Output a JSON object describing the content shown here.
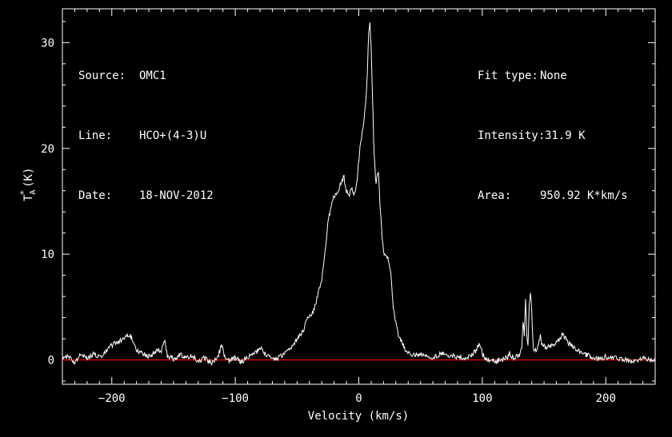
{
  "info_left": [
    {
      "label": "Source:",
      "value": "OMC1"
    },
    {
      "label": "Line:",
      "value": "HCO+(4-3)U"
    },
    {
      "label": "Date:",
      "value": "18-NOV-2012"
    }
  ],
  "info_right": [
    {
      "label": "Fit type:",
      "value": "None"
    },
    {
      "label": "Intensity:",
      "value": "31.9 K"
    },
    {
      "label": "Area:",
      "value": "950.92 K*km/s"
    }
  ],
  "colors": {
    "background": "#000000",
    "spectrum": "#ffffff",
    "baseline": "#ff0000",
    "axes": "#ffffff"
  },
  "chart_data": {
    "type": "line",
    "title": "",
    "xlabel": "Velocity (km/s)",
    "ylabel": "T",
    "ylabel_sub": "A",
    "ylabel_sup": "*",
    "ylabel_unit": "(K)",
    "xlim": [
      -240,
      240
    ],
    "ylim": [
      -2.3,
      33.2
    ],
    "xticks": [
      -200,
      -100,
      0,
      100,
      200
    ],
    "xtick_labels": [
      "−200",
      "−100",
      "0",
      "100",
      "200"
    ],
    "yticks": [
      0,
      10,
      20,
      30
    ],
    "ytick_labels": [
      "0",
      "10",
      "20",
      "30"
    ],
    "grid": false,
    "baseline": 0,
    "series": [
      {
        "x": [
          -240,
          -235,
          -230,
          -225,
          -220,
          -215,
          -210,
          -205,
          -200,
          -195,
          -190,
          -186,
          -183,
          -180,
          -175,
          -170,
          -165,
          -160,
          -157,
          -155,
          -150,
          -145,
          -140,
          -135,
          -130,
          -125,
          -120,
          -115,
          -111,
          -108,
          -105,
          -100,
          -95,
          -90,
          -85,
          -80,
          -77,
          -75,
          -70,
          -65,
          -60,
          -55,
          -50,
          -45,
          -41,
          -38,
          -35,
          -30,
          -27,
          -25,
          -22,
          -20,
          -17,
          -15,
          -12,
          -10,
          -8,
          -6,
          -4,
          -2,
          0,
          2,
          4,
          6,
          7,
          8,
          9,
          10,
          11,
          12,
          13,
          14,
          15,
          16,
          17,
          18,
          19,
          20,
          22,
          24,
          26,
          28,
          30,
          32,
          35,
          38,
          40,
          45,
          50,
          55,
          60,
          65,
          70,
          75,
          80,
          85,
          90,
          95,
          98,
          100,
          103,
          105,
          110,
          115,
          120,
          122,
          125,
          128,
          130,
          132,
          133,
          134,
          135,
          136,
          137,
          138,
          139,
          140,
          141,
          142,
          143,
          145,
          147,
          148,
          150,
          153,
          156,
          160,
          163,
          165,
          168,
          170,
          175,
          180,
          185,
          190,
          195,
          200,
          205,
          210,
          215,
          220,
          225,
          230,
          235,
          240
        ],
        "y": [
          0.2,
          0.4,
          -0.2,
          0.5,
          0.1,
          0.6,
          0.3,
          0.8,
          1.4,
          1.7,
          2.0,
          2.4,
          1.9,
          1.0,
          0.6,
          0.3,
          0.8,
          0.9,
          1.9,
          0.4,
          0.1,
          0.5,
          0.2,
          0.4,
          -0.1,
          0.2,
          -0.3,
          0.1,
          1.3,
          0.2,
          -0.1,
          0.2,
          -0.2,
          0.3,
          0.5,
          1.1,
          0.8,
          0.4,
          0.1,
          0.2,
          0.5,
          1.2,
          1.9,
          2.8,
          4.2,
          4.3,
          5.3,
          7.7,
          10.3,
          13.0,
          14.8,
          15.5,
          15.8,
          16.7,
          17.3,
          16.0,
          15.5,
          16.2,
          15.5,
          16.3,
          19.0,
          21.0,
          22.5,
          25.0,
          27.5,
          31.0,
          31.9,
          29.5,
          25.0,
          21.0,
          18.2,
          16.5,
          17.6,
          17.5,
          15.0,
          13.3,
          11.5,
          10.2,
          9.8,
          9.5,
          8.2,
          5.0,
          3.4,
          2.4,
          1.6,
          0.8,
          0.6,
          0.4,
          0.6,
          0.3,
          0.3,
          0.5,
          0.6,
          0.4,
          0.3,
          0.2,
          0.3,
          0.9,
          1.6,
          0.6,
          0.1,
          0.0,
          -0.1,
          0.0,
          0.2,
          0.6,
          0.2,
          0.3,
          0.4,
          1.0,
          3.8,
          2.2,
          5.6,
          2.5,
          1.2,
          5.1,
          6.5,
          4.8,
          1.6,
          0.7,
          0.9,
          1.3,
          2.2,
          1.4,
          1.3,
          1.2,
          1.3,
          1.6,
          2.1,
          2.4,
          1.9,
          1.6,
          1.1,
          0.6,
          0.5,
          0.2,
          0.1,
          0.3,
          0.2,
          0.1,
          0.0,
          -0.1,
          0.0,
          0.1,
          0.0,
          -0.1
        ]
      }
    ]
  }
}
